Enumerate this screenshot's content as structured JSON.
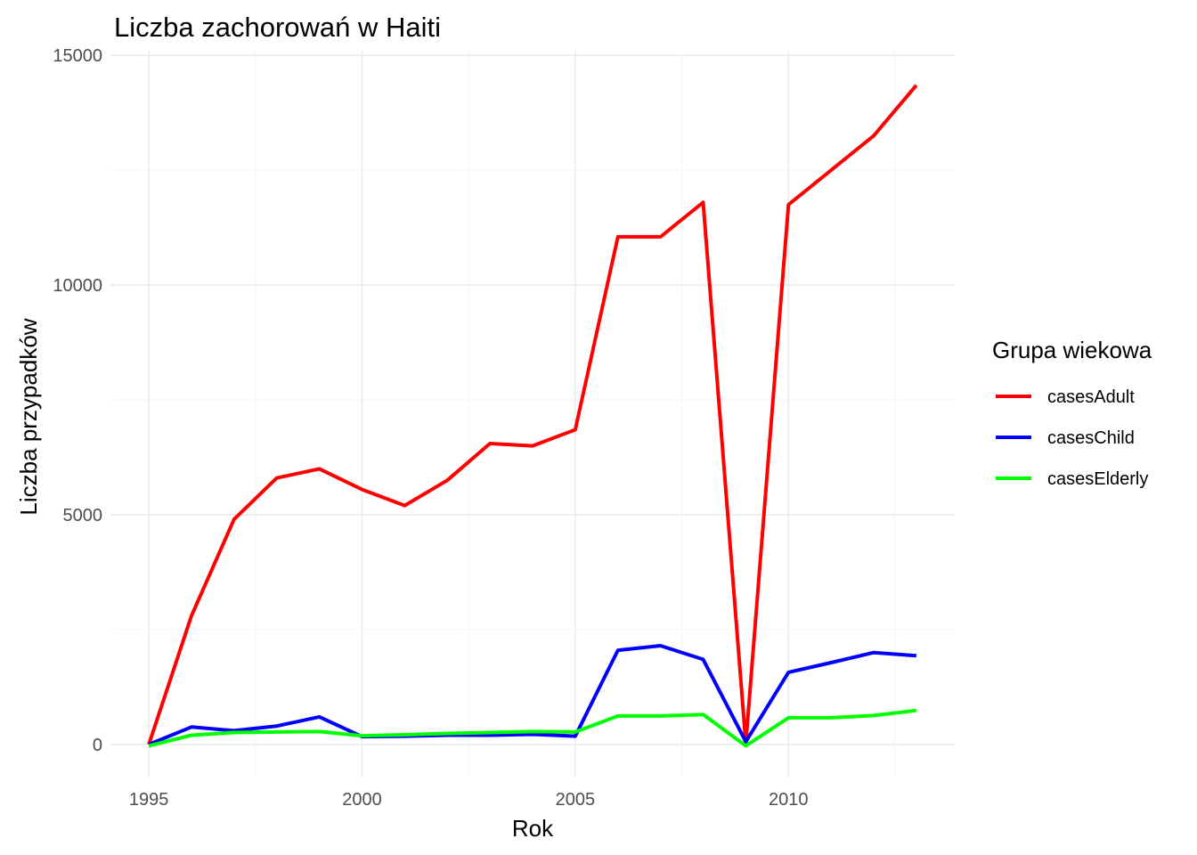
{
  "chart_data": {
    "type": "line",
    "title": "Liczba zachorowań w Haiti",
    "xlabel": "Rok",
    "ylabel": "Liczba przypadków",
    "x": [
      1995,
      1996,
      1997,
      1998,
      1999,
      2000,
      2001,
      2002,
      2003,
      2004,
      2005,
      2006,
      2007,
      2008,
      2009,
      2010,
      2011,
      2012,
      2013
    ],
    "xlim": [
      1994.1,
      2013.9
    ],
    "ylim": [
      -720,
      15100
    ],
    "x_ticks": [
      1995,
      2000,
      2005,
      2010
    ],
    "y_ticks": [
      0,
      5000,
      10000,
      15000
    ],
    "grid": true,
    "legend": {
      "title": "Grupa wiekowa",
      "position": "right"
    },
    "series": [
      {
        "name": "casesAdult",
        "color": "#ff0000",
        "values": [
          0,
          2800,
          4900,
          5800,
          6000,
          5550,
          5200,
          5750,
          6550,
          6500,
          6850,
          11050,
          11050,
          11800,
          20,
          11750,
          12500,
          13250,
          14350
        ]
      },
      {
        "name": "casesChild",
        "color": "#0000ff",
        "values": [
          0,
          380,
          300,
          400,
          600,
          170,
          180,
          200,
          200,
          220,
          180,
          2050,
          2150,
          1850,
          60,
          1570,
          1780,
          2000,
          1930
        ]
      },
      {
        "name": "casesElderly",
        "color": "#00ff00",
        "values": [
          -30,
          200,
          260,
          270,
          280,
          190,
          210,
          240,
          260,
          280,
          270,
          620,
          620,
          650,
          -30,
          580,
          580,
          630,
          740
        ]
      }
    ]
  }
}
